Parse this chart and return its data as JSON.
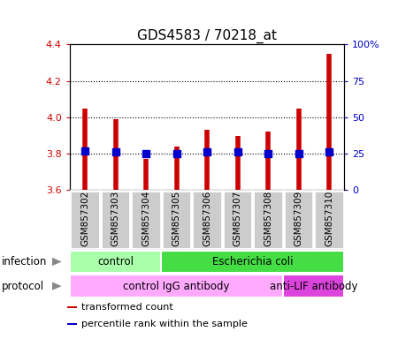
{
  "title": "GDS4583 / 70218_at",
  "samples": [
    "GSM857302",
    "GSM857303",
    "GSM857304",
    "GSM857305",
    "GSM857306",
    "GSM857307",
    "GSM857308",
    "GSM857309",
    "GSM857310"
  ],
  "transformed_count": [
    4.05,
    3.99,
    3.77,
    3.84,
    3.93,
    3.9,
    3.92,
    4.05,
    4.35
  ],
  "percentile_rank": [
    27,
    26,
    25,
    25,
    26,
    26,
    25,
    25,
    26
  ],
  "ylim_left": [
    3.6,
    4.4
  ],
  "ylim_right": [
    0,
    100
  ],
  "yticks_left": [
    3.6,
    3.8,
    4.0,
    4.2,
    4.4
  ],
  "yticks_right": [
    0,
    25,
    50,
    75,
    100
  ],
  "ytick_labels_right": [
    "0",
    "25",
    "50",
    "75",
    "100%"
  ],
  "bar_color": "#cc0000",
  "dot_color": "#0000cc",
  "dot_size": 28,
  "infection_labels": [
    {
      "label": "control",
      "start": 0,
      "end": 3,
      "color": "#aaffaa"
    },
    {
      "label": "Escherichia coli",
      "start": 3,
      "end": 9,
      "color": "#44dd44"
    }
  ],
  "protocol_labels": [
    {
      "label": "control IgG antibody",
      "start": 0,
      "end": 7,
      "color": "#ffaaff"
    },
    {
      "label": "anti-LIF antibody",
      "start": 7,
      "end": 9,
      "color": "#dd44dd"
    }
  ],
  "infection_row_label": "infection",
  "protocol_row_label": "protocol",
  "legend_items": [
    {
      "color": "#cc0000",
      "label": "transformed count"
    },
    {
      "color": "#0000cc",
      "label": "percentile rank within the sample"
    }
  ],
  "sample_box_color": "#cccccc",
  "grid_color": "#000000",
  "grid_linestyle": "dotted",
  "grid_linewidth": 0.8,
  "spine_color": "#000000",
  "left_tick_color": "#cc0000",
  "right_tick_color": "#0000cc",
  "title_fontsize": 11,
  "axis_fontsize": 8,
  "label_fontsize": 8.5,
  "sample_label_fontsize": 7.5,
  "annotation_fontsize": 8,
  "row_label_fontsize": 8.5
}
